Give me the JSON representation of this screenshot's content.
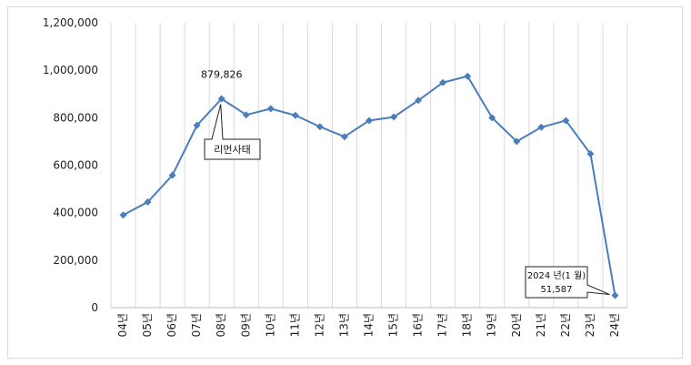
{
  "chart_data": {
    "type": "line",
    "categories": [
      "04년",
      "05년",
      "06년",
      "07년",
      "08년",
      "09년",
      "10년",
      "11년",
      "12년",
      "13년",
      "14년",
      "15년",
      "16년",
      "17년",
      "18년",
      "19년",
      "20년",
      "21년",
      "22년",
      "23년",
      "24년"
    ],
    "values": [
      390000,
      445000,
      558000,
      768000,
      879826,
      812000,
      838000,
      810000,
      762000,
      720000,
      788000,
      803000,
      873000,
      948000,
      975000,
      800000,
      700000,
      760000,
      788000,
      648000,
      51587
    ],
    "ylim": [
      0,
      1200000
    ],
    "yticks": [
      "1,200,000",
      "1,000,000",
      "800,000",
      "600,000",
      "400,000",
      "200,000",
      "0"
    ],
    "grid": "vertical",
    "line_color": "#4a7ebb",
    "annotations": {
      "peak_value": "879,826",
      "event_label": "리먼사태",
      "last_label_line1": "2024 년(1 월)",
      "last_label_line2": "51,587"
    }
  }
}
